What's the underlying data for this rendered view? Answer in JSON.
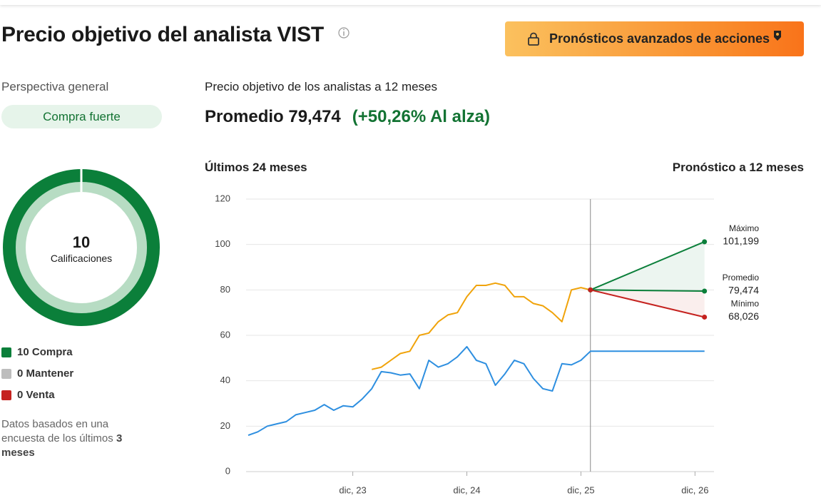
{
  "header": {
    "title": "Precio objetivo del analista VIST",
    "button": "Pronósticos avanzados de acciones"
  },
  "overview": {
    "title": "Perspectiva general",
    "consensus": "Compra fuerte",
    "total": 10,
    "total_label": "Calificaciones",
    "ratings": [
      {
        "count": 10,
        "label": "Compra",
        "color": "#0b7f3a"
      },
      {
        "count": 0,
        "label": "Mantener",
        "color": "#bdbdbd"
      },
      {
        "count": 0,
        "label": "Venta",
        "color": "#c5221f"
      }
    ],
    "note": "Datos basados en una encuesta de los últimos",
    "note_emphasis": "3 meses"
  },
  "target": {
    "title": "Precio objetivo de los analistas a 12 meses",
    "average_label": "Promedio",
    "average": "79,474",
    "upside": "(+50,26% Al alza)",
    "past_label": "Últimos 24 meses",
    "forecast_label": "Pronóstico a 12 meses"
  },
  "chart_data": {
    "type": "line",
    "ylim": [
      0,
      120
    ],
    "yticks": [
      0,
      20,
      40,
      60,
      80,
      100,
      120
    ],
    "xlim": [
      "2023-01",
      "2027-02"
    ],
    "xticks": [
      {
        "value": "2023-12",
        "label": "dic, 23"
      },
      {
        "value": "2024-12",
        "label": "dic, 24"
      },
      {
        "value": "2025-12",
        "label": "dic, 25"
      },
      {
        "value": "2026-12",
        "label": "dic, 26"
      }
    ],
    "grid": true,
    "divider": "2026-01",
    "series": [
      {
        "color": "#2e8fe0",
        "x": [
          "2023-01",
          "2023-02",
          "2023-03",
          "2023-04",
          "2023-05",
          "2023-06",
          "2023-07",
          "2023-08",
          "2023-09",
          "2023-10",
          "2023-11",
          "2023-12",
          "2024-01",
          "2024-02",
          "2024-03",
          "2024-04",
          "2024-05",
          "2024-06",
          "2024-07",
          "2024-08",
          "2024-09",
          "2024-10",
          "2024-11",
          "2024-12",
          "2025-01",
          "2025-02",
          "2025-03",
          "2025-04",
          "2025-05",
          "2025-06",
          "2025-07",
          "2025-08",
          "2025-09",
          "2025-10",
          "2025-11",
          "2025-12",
          "2026-01",
          "2027-01"
        ],
        "values": [
          16,
          17.5,
          20,
          21,
          22,
          25,
          26,
          27,
          29.5,
          27,
          29,
          28.5,
          32,
          36.5,
          44,
          43.5,
          42.5,
          43,
          36.5,
          49,
          46,
          47.5,
          50.5,
          55,
          49,
          47.5,
          38,
          43,
          49,
          47.5,
          41,
          36.5,
          35.5,
          47.5,
          47,
          49,
          53,
          53
        ]
      },
      {
        "color": "#f0a30a",
        "x": [
          "2024-02",
          "2024-03",
          "2024-04",
          "2024-05",
          "2024-06",
          "2024-07",
          "2024-08",
          "2024-09",
          "2024-10",
          "2024-11",
          "2024-12",
          "2025-01",
          "2025-02",
          "2025-03",
          "2025-04",
          "2025-05",
          "2025-06",
          "2025-07",
          "2025-08",
          "2025-09",
          "2025-10",
          "2025-11",
          "2025-12",
          "2026-01"
        ],
        "values": [
          45,
          46,
          49,
          52,
          53,
          60,
          61,
          66,
          69,
          70,
          77,
          82,
          82,
          83,
          82,
          77,
          77,
          74,
          73,
          70,
          66,
          80,
          81,
          80
        ]
      }
    ],
    "forecast": [
      {
        "name": "Máximo",
        "color": "#0b7f3a",
        "x": [
          "2026-01",
          "2027-01"
        ],
        "values": [
          80,
          101.199
        ],
        "value_labels": [
          null,
          "101,199"
        ]
      },
      {
        "name": "Promedio",
        "color": "#0b7f3a",
        "x": [
          "2026-01",
          "2027-01"
        ],
        "values": [
          80,
          79.474
        ],
        "value_labels": [
          null,
          "79,474"
        ]
      },
      {
        "name": "Mínimo",
        "color": "#c5221f",
        "x": [
          "2026-01",
          "2027-01"
        ],
        "values": [
          80,
          68.026
        ],
        "value_labels": [
          null,
          "68,026"
        ]
      }
    ]
  }
}
